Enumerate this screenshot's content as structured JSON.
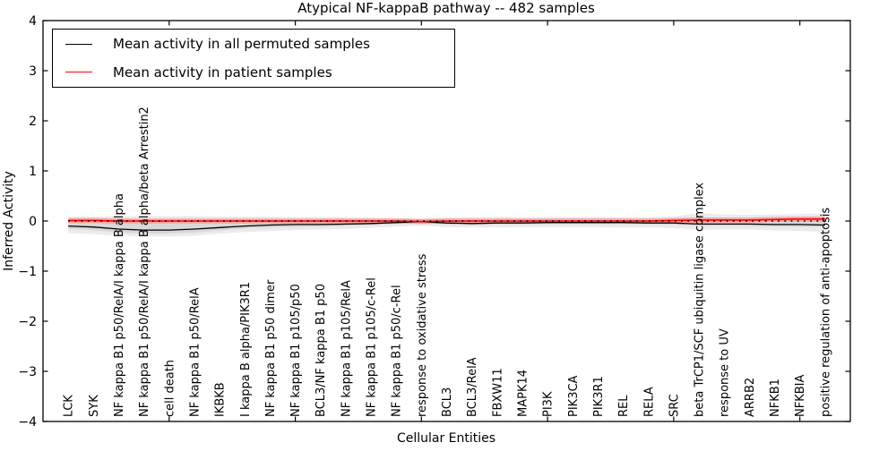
{
  "figure": {
    "title": "Atypical NF-kappaB pathway -- 482 samples",
    "xlabel": "Cellular Entities",
    "ylabel": "Inferred Activity"
  },
  "legend": {
    "entries": [
      {
        "label": "Mean activity in all permuted samples",
        "color": "#000000"
      },
      {
        "label": "Mean activity in patient samples",
        "color": "#ff0000"
      }
    ]
  },
  "chart_data": {
    "type": "line",
    "title": "Atypical NF-kappaB pathway -- 482 samples",
    "xlabel": "Cellular Entities",
    "ylabel": "Inferred Activity",
    "ylim": [
      -4,
      4
    ],
    "xlim": [
      0,
      32
    ],
    "yticks": [
      -4,
      -3,
      -2,
      -1,
      0,
      1,
      2,
      3,
      4
    ],
    "ytick_labels": [
      "−4",
      "−3",
      "−2",
      "−1",
      "0",
      "1",
      "2",
      "3",
      "4"
    ],
    "xticks": [
      5,
      10,
      15,
      20,
      25,
      30
    ],
    "grid": false,
    "legend_position": "upper left",
    "categories": [
      "LCK",
      "SYK",
      "NF kappa B1 p50/RelA/I kappa B alpha",
      "NF kappa B1 p50/RelA/I kappa B alpha/beta Arrestin2",
      "cell death",
      "NF kappa B1 p50/RelA",
      "IKBKB",
      "I kappa B alpha/PIK3R1",
      "NF kappa B1 p50 dimer",
      "NF kappa B1 p105/p50",
      "BCL3/NF kappa B1 p50",
      "NF kappa B1 p105/RelA",
      "NF kappa B1 p105/c-Rel",
      "NF kappa B1 p50/c-Rel",
      "response to oxidative stress",
      "BCL3",
      "BCL3/RelA",
      "FBXW11",
      "MAPK14",
      "PI3K",
      "PIK3CA",
      "PIK3R1",
      "REL",
      "RELA",
      "SRC",
      "beta TrCP1/SCF ubiquitin ligase complex",
      "response to UV",
      "ARRB2",
      "NFKB1",
      "NFKBIA",
      "positive regulation of anti-apoptosis"
    ],
    "series": [
      {
        "name": "Mean activity in all permuted samples",
        "color": "#000000",
        "style": "solid",
        "values": [
          -0.1,
          -0.12,
          -0.16,
          -0.18,
          -0.18,
          -0.16,
          -0.13,
          -0.1,
          -0.08,
          -0.07,
          -0.07,
          -0.06,
          -0.05,
          -0.03,
          -0.01,
          -0.04,
          -0.05,
          -0.04,
          -0.04,
          -0.03,
          -0.03,
          -0.03,
          -0.03,
          -0.04,
          -0.04,
          -0.06,
          -0.06,
          -0.06,
          -0.07,
          -0.07,
          -0.08
        ]
      },
      {
        "name": "Mean activity in patient samples",
        "color": "#ff0000",
        "style": "solid",
        "values": [
          0.01,
          0.01,
          0.0,
          0.0,
          0.0,
          0.0,
          0.0,
          0.0,
          0.0,
          0.0,
          0.0,
          0.0,
          0.0,
          0.0,
          -0.01,
          0.0,
          0.0,
          0.0,
          0.0,
          0.0,
          0.0,
          0.0,
          0.0,
          0.0,
          0.01,
          0.02,
          0.02,
          0.02,
          0.03,
          0.04,
          0.04
        ]
      }
    ],
    "reference_line": {
      "y": 0,
      "style": "dotted",
      "color": "#000000"
    },
    "bands": [
      {
        "name": "permuted-outer-band",
        "color": "#ebebeb",
        "upper": [
          0.08,
          0.09,
          0.1,
          0.1,
          0.1,
          0.1,
          0.09,
          0.09,
          0.09,
          0.08,
          0.08,
          0.08,
          0.07,
          0.06,
          0.05,
          0.07,
          0.08,
          0.08,
          0.08,
          0.08,
          0.08,
          0.08,
          0.08,
          0.08,
          0.09,
          0.16,
          0.13,
          0.12,
          0.13,
          0.14,
          0.15
        ],
        "lower": [
          -0.24,
          -0.26,
          -0.29,
          -0.31,
          -0.31,
          -0.29,
          -0.25,
          -0.22,
          -0.2,
          -0.18,
          -0.17,
          -0.16,
          -0.13,
          -0.11,
          -0.09,
          -0.12,
          -0.13,
          -0.13,
          -0.12,
          -0.12,
          -0.12,
          -0.12,
          -0.13,
          -0.13,
          -0.14,
          -0.18,
          -0.17,
          -0.17,
          -0.19,
          -0.2,
          -0.21
        ]
      },
      {
        "name": "permuted-inner-band",
        "color": "#d8d8d8",
        "upper": [
          0.02,
          0.02,
          0.02,
          0.02,
          0.02,
          0.02,
          0.02,
          0.02,
          0.02,
          0.02,
          0.02,
          0.02,
          0.02,
          0.02,
          0.02,
          0.02,
          0.02,
          0.02,
          0.02,
          0.02,
          0.02,
          0.02,
          0.02,
          0.02,
          0.02,
          0.04,
          0.03,
          0.03,
          0.04,
          0.04,
          0.05
        ],
        "lower": [
          -0.16,
          -0.18,
          -0.23,
          -0.25,
          -0.25,
          -0.23,
          -0.19,
          -0.15,
          -0.13,
          -0.12,
          -0.11,
          -0.1,
          -0.08,
          -0.06,
          -0.04,
          -0.07,
          -0.08,
          -0.07,
          -0.07,
          -0.06,
          -0.06,
          -0.06,
          -0.06,
          -0.07,
          -0.07,
          -0.1,
          -0.1,
          -0.1,
          -0.11,
          -0.12,
          -0.12
        ]
      },
      {
        "name": "patient-band",
        "color": "#f6a3a3",
        "upper": [
          0.06,
          0.06,
          0.05,
          0.05,
          0.05,
          0.05,
          0.05,
          0.05,
          0.05,
          0.05,
          0.05,
          0.05,
          0.05,
          0.05,
          0.04,
          0.05,
          0.05,
          0.05,
          0.05,
          0.05,
          0.05,
          0.05,
          0.05,
          0.05,
          0.06,
          0.07,
          0.07,
          0.07,
          0.08,
          0.09,
          0.09
        ],
        "lower": [
          -0.04,
          -0.04,
          -0.05,
          -0.05,
          -0.05,
          -0.05,
          -0.05,
          -0.05,
          -0.05,
          -0.05,
          -0.05,
          -0.05,
          -0.05,
          -0.05,
          -0.06,
          -0.05,
          -0.05,
          -0.05,
          -0.05,
          -0.05,
          -0.05,
          -0.05,
          -0.05,
          -0.05,
          -0.04,
          -0.03,
          -0.03,
          -0.03,
          -0.02,
          -0.01,
          -0.01
        ]
      }
    ]
  }
}
